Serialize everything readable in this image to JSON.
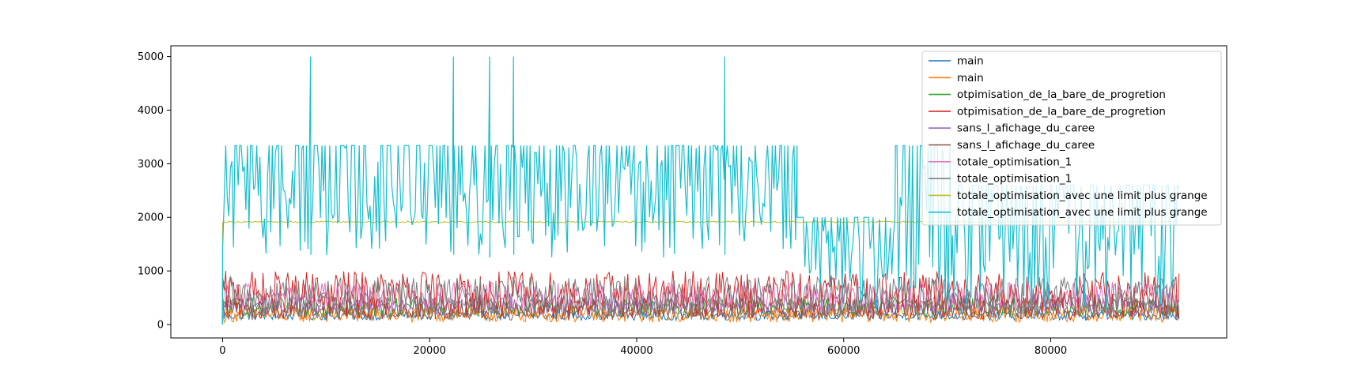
{
  "chart_data": {
    "type": "line",
    "title": "",
    "xlabel": "",
    "ylabel": "",
    "xlim": [
      -5000,
      97000
    ],
    "ylim": [
      -250,
      5200
    ],
    "x_ticks": [
      0,
      20000,
      40000,
      60000,
      80000
    ],
    "x_tick_labels": [
      "0",
      "20000",
      "40000",
      "60000",
      "80000"
    ],
    "y_ticks": [
      0,
      1000,
      2000,
      3000,
      4000,
      5000
    ],
    "y_tick_labels": [
      "0",
      "1000",
      "2000",
      "3000",
      "4000",
      "5000"
    ],
    "grid": false,
    "legend_placement": "upper right",
    "series": [
      {
        "name": "main",
        "color": "#1f77b4",
        "x_end": 92500,
        "low": 80,
        "high": 260,
        "spikes": []
      },
      {
        "name": "main",
        "color": "#ff7f0e",
        "x_end": 92500,
        "low": 40,
        "high": 320,
        "spikes": []
      },
      {
        "name": "otpimisation_de_la_bare_de_progretion",
        "color": "#2ca02c",
        "x_end": 92500,
        "low": 150,
        "high": 500,
        "spikes": []
      },
      {
        "name": "otpimisation_de_la_bare_de_progretion",
        "color": "#d62728",
        "x_end": 92500,
        "low": 100,
        "high": 1000,
        "spikes": []
      },
      {
        "name": "sans_l_afichage_du_caree",
        "color": "#9467bd",
        "x_end": 92500,
        "low": 150,
        "high": 600,
        "spikes": []
      },
      {
        "name": "sans_l_afichage_du_caree",
        "color": "#8c564b",
        "x_end": 92500,
        "low": 80,
        "high": 500,
        "spikes": []
      },
      {
        "name": "totale_optimisation_1",
        "color": "#e377c2",
        "x_end": 92500,
        "low": 200,
        "high": 800,
        "spikes": []
      },
      {
        "name": "totale_optimisation_1",
        "color": "#7f7f7f",
        "x_end": 92500,
        "low": 150,
        "high": 900,
        "spikes": []
      },
      {
        "name": "totale_optimisation_avec une limit plus grange",
        "color": "#bcbd22",
        "x_end": 92500,
        "low": 1900,
        "high": 1930,
        "spikes": []
      },
      {
        "name": "totale_optimisation_avec une limit plus grange",
        "color": "#17becf",
        "x_end": 92500,
        "low": 1200,
        "high": 3340,
        "segments": [
          {
            "x_start": 0,
            "x_end": 55500,
            "low": 1250,
            "high": 3340
          },
          {
            "x_start": 55500,
            "x_end": 65000,
            "low": 200,
            "high": 2000
          },
          {
            "x_start": 65000,
            "x_end": 70500,
            "low": 300,
            "high": 3340
          },
          {
            "x_start": 70500,
            "x_end": 92500,
            "low": 300,
            "high": 2600
          }
        ],
        "spikes": [
          8500,
          22300,
          25800,
          28100,
          48500
        ],
        "spike_value": 5000
      }
    ]
  }
}
